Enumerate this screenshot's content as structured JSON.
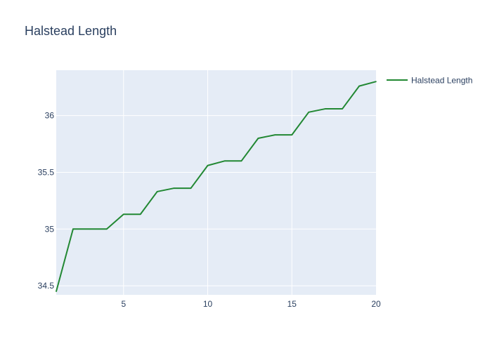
{
  "chart_data": {
    "type": "line",
    "title": "Halstead Length",
    "xlabel": "",
    "ylabel": "",
    "x": [
      1,
      2,
      3,
      4,
      5,
      6,
      7,
      8,
      9,
      10,
      11,
      12,
      13,
      14,
      15,
      16,
      17,
      18,
      19,
      20
    ],
    "series": [
      {
        "name": "Halstead Length",
        "color": "#228833",
        "values": [
          34.45,
          35.0,
          35.0,
          35.0,
          35.13,
          35.13,
          35.33,
          35.36,
          35.36,
          35.56,
          35.6,
          35.6,
          35.8,
          35.83,
          35.83,
          36.03,
          36.06,
          36.06,
          36.26,
          36.3
        ]
      }
    ],
    "xlim": [
      1,
      20
    ],
    "ylim": [
      34.42,
      36.4
    ],
    "x_ticks": [
      5,
      10,
      15,
      20
    ],
    "x_tick_labels": [
      "5",
      "10",
      "15",
      "20"
    ],
    "y_ticks": [
      34.5,
      35,
      35.5,
      36
    ],
    "y_tick_labels": [
      "34.5",
      "35",
      "35.5",
      "36"
    ],
    "grid": true,
    "legend_position": "top-right",
    "plot_bgcolor": "#e5ecf6",
    "grid_color": "#ffffff",
    "text_color": "#2a3f5f"
  }
}
